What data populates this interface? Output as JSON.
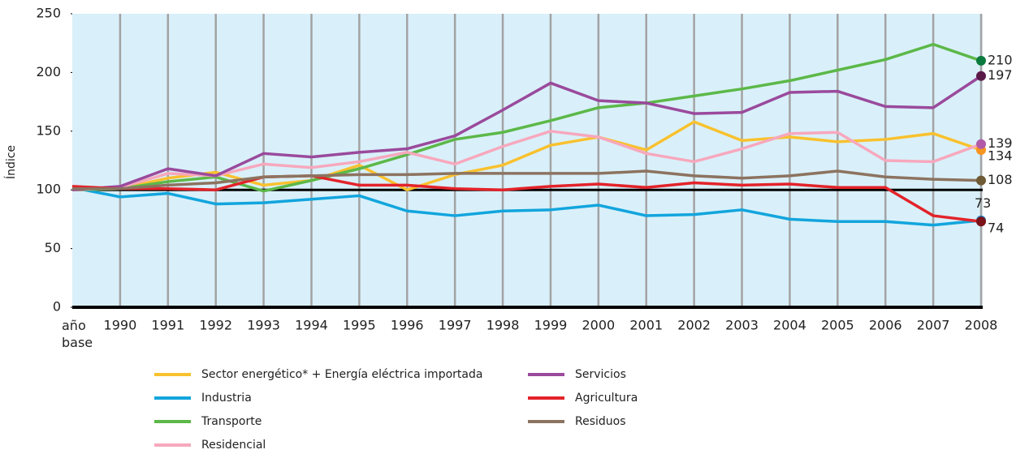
{
  "chart_data": {
    "type": "line",
    "y_label": "Índice",
    "categories": [
      "año base",
      "1990",
      "1991",
      "1992",
      "1993",
      "1994",
      "1995",
      "1996",
      "1997",
      "1998",
      "1999",
      "2000",
      "2001",
      "2002",
      "2003",
      "2004",
      "2005",
      "2006",
      "2007",
      "2008"
    ],
    "ylim": [
      0,
      250
    ],
    "yticks": [
      0,
      50,
      100,
      150,
      200,
      250
    ],
    "reference_line": 100,
    "grid": true,
    "series": [
      {
        "name": "Sector energético* + Energía eléctrica importada",
        "color": "#f9c12e",
        "end_color": "#f7941d",
        "values": [
          100,
          101,
          110,
          115,
          104,
          108,
          121,
          100,
          113,
          121,
          138,
          145,
          134,
          158,
          142,
          145,
          141,
          143,
          148,
          134
        ]
      },
      {
        "name": "Industria",
        "color": "#12a5dd",
        "end_color": "#1f7fc4",
        "values": [
          102,
          94,
          97,
          88,
          89,
          92,
          95,
          82,
          78,
          82,
          83,
          87,
          78,
          79,
          83,
          75,
          73,
          73,
          70,
          74
        ]
      },
      {
        "name": "Transporte",
        "color": "#5cb848",
        "end_color": "#0b7a3e",
        "values": [
          100,
          101,
          107,
          111,
          99,
          108,
          118,
          130,
          143,
          149,
          159,
          170,
          174,
          180,
          186,
          193,
          202,
          211,
          224,
          210
        ]
      },
      {
        "name": "Residencial",
        "color": "#f7a8bd",
        "end_color": "#b05aa8",
        "values": [
          100,
          102,
          114,
          112,
          122,
          119,
          124,
          132,
          122,
          137,
          150,
          145,
          131,
          124,
          135,
          148,
          149,
          125,
          124,
          139
        ]
      },
      {
        "name": "Servicios",
        "color": "#9a4a9c",
        "end_color": "#5a1a48",
        "values": [
          100,
          103,
          118,
          112,
          131,
          128,
          132,
          135,
          146,
          168,
          191,
          176,
          174,
          165,
          166,
          183,
          184,
          171,
          170,
          197
        ]
      },
      {
        "name": "Agricultura",
        "color": "#e3232a",
        "end_color": "#7a1218",
        "values": [
          103,
          101,
          101,
          100,
          111,
          112,
          104,
          104,
          101,
          100,
          103,
          105,
          102,
          106,
          104,
          105,
          102,
          102,
          78,
          73
        ]
      },
      {
        "name": "Residuos",
        "color": "#8c7360",
        "end_color": "#6e5a35",
        "values": [
          101,
          101,
          104,
          106,
          111,
          112,
          113,
          113,
          114,
          114,
          114,
          114,
          116,
          112,
          110,
          112,
          116,
          111,
          109,
          108
        ]
      }
    ]
  }
}
